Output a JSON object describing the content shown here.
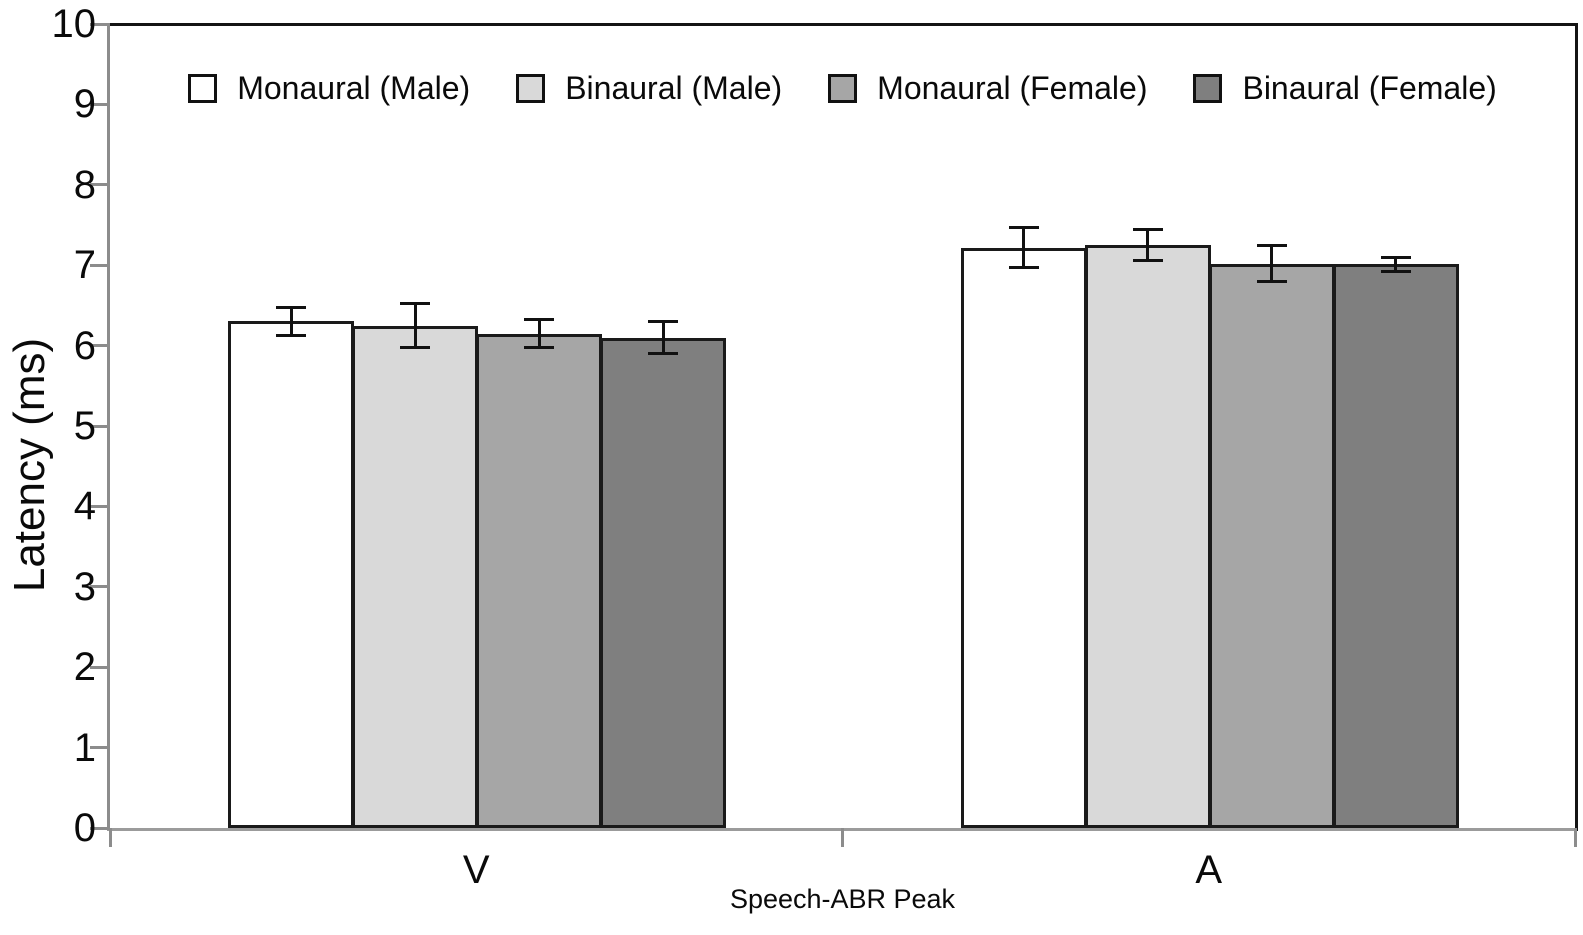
{
  "figure": {
    "background": "#ffffff"
  },
  "chart_data": {
    "type": "bar",
    "title": "",
    "xlabel": "Speech-ABR Peak",
    "ylabel": "Latency (ms)",
    "categories": [
      "V",
      "A"
    ],
    "series": [
      {
        "name": "Monaural (Male)",
        "fill": "#ffffff",
        "values": [
          6.3,
          7.22
        ],
        "errors": [
          0.17,
          0.25
        ]
      },
      {
        "name": "Binaural (Male)",
        "fill": "#d9d9d9",
        "values": [
          6.25,
          7.25
        ],
        "errors": [
          0.27,
          0.19
        ]
      },
      {
        "name": "Monaural (Female)",
        "fill": "#a6a6a6",
        "values": [
          6.15,
          7.02
        ],
        "errors": [
          0.17,
          0.22
        ]
      },
      {
        "name": "Binaural (Female)",
        "fill": "#7f7f7f",
        "values": [
          6.1,
          7.01
        ],
        "errors": [
          0.2,
          0.09
        ]
      }
    ],
    "ylim": [
      0,
      10
    ],
    "ytick_interval": 1,
    "y_ticks": [
      "0",
      "1",
      "2",
      "3",
      "4",
      "5",
      "6",
      "7",
      "8",
      "9",
      "10"
    ],
    "grid": false,
    "error_bars": true,
    "legend_position": "top-inside",
    "colors": {
      "axis_gray": "#8c8c8c",
      "bottom_axis_gray": "#9b9b9b",
      "frame_black": "#141414",
      "bar_border": "#1a1a1a",
      "error_bar": "#111111"
    }
  }
}
